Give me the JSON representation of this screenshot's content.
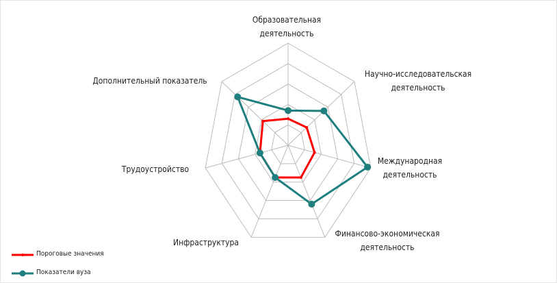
{
  "chart_data": {
    "type": "radar",
    "categories": [
      "Образовательная деятельность",
      "Научно-исследовательская деятельность",
      "Международная деятельность",
      "Финансово-экономическая деятельность",
      "Инфраструктура",
      "Трудоустройство",
      "Дополнительный показатель"
    ],
    "series": [
      {
        "name": "Пороговые значения",
        "color": "#ff0000",
        "values": [
          1.3,
          1.4,
          1.6,
          1.75,
          1.75,
          1.7,
          1.9
        ]
      },
      {
        "name": "Показатели вуза",
        "color": "#1f7f7f",
        "values": [
          1.7,
          2.7,
          4.8,
          3.2,
          1.75,
          1.7,
          3.8
        ]
      }
    ],
    "rlim": [
      0,
      5
    ],
    "rticks": [
      1,
      2,
      3,
      4,
      5
    ],
    "grid": true,
    "legend": "bottom-left"
  }
}
